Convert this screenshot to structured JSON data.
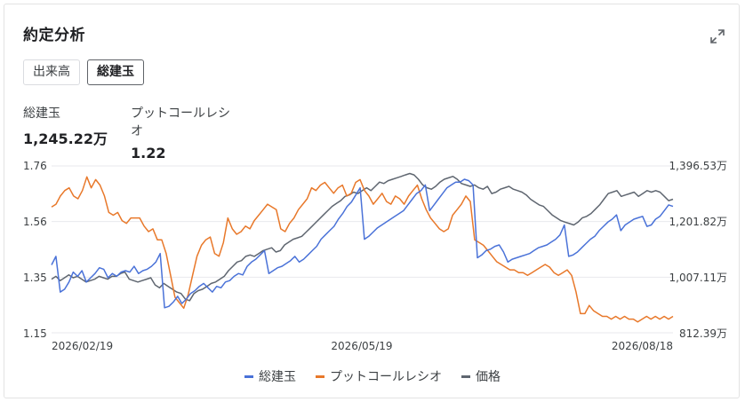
{
  "card": {
    "title": "約定分析"
  },
  "tabs": [
    {
      "label": "出来高",
      "active": false
    },
    {
      "label": "総建玉",
      "active": true
    }
  ],
  "metrics": [
    {
      "label": "総建玉",
      "value": "1,245.22万"
    },
    {
      "label": "プットコールレシオ",
      "value": "1.22"
    }
  ],
  "icons": {
    "expand": "expand-icon"
  },
  "colors": {
    "oi": "#4a72d8",
    "pcr": "#e8782a",
    "price": "#5f6670",
    "grid": "#e8eaed"
  },
  "chart_data": {
    "type": "line",
    "x_labels": [
      "2026/02/19",
      "2026/05/19",
      "2026/08/18"
    ],
    "y_left": {
      "ticks": [
        "1.76",
        "1.56",
        "1.35",
        "1.15"
      ],
      "range": [
        1.15,
        1.76
      ]
    },
    "y_right": {
      "ticks": [
        "1,396.53万",
        "1,201.82万",
        "1,007.11万",
        "812.39万"
      ],
      "range": [
        812.39,
        1396.53
      ]
    },
    "grid": true,
    "legend_position": "bottom",
    "series": [
      {
        "name": "総建玉",
        "axis": "right",
        "color": "#4a72d8",
        "values": [
          1050,
          1080,
          955,
          965,
          990,
          1025,
          1010,
          1030,
          990,
          1005,
          1020,
          1040,
          1035,
          1005,
          1020,
          1010,
          1025,
          1030,
          1025,
          1045,
          1020,
          1030,
          1035,
          1045,
          1060,
          1090,
          900,
          905,
          920,
          940,
          915,
          930,
          950,
          960,
          975,
          985,
          970,
          955,
          975,
          970,
          990,
          995,
          1010,
          1020,
          1015,
          1045,
          1060,
          1070,
          1085,
          1100,
          1020,
          1030,
          1040,
          1045,
          1055,
          1065,
          1080,
          1060,
          1070,
          1085,
          1100,
          1115,
          1140,
          1155,
          1170,
          1185,
          1210,
          1230,
          1255,
          1270,
          1295,
          1320,
          1140,
          1150,
          1165,
          1180,
          1190,
          1200,
          1210,
          1220,
          1230,
          1240,
          1260,
          1280,
          1300,
          1310,
          1330,
          1240,
          1260,
          1280,
          1300,
          1320,
          1330,
          1340,
          1340,
          1350,
          1345,
          1330,
          1075,
          1085,
          1100,
          1105,
          1115,
          1120,
          1095,
          1060,
          1070,
          1075,
          1080,
          1085,
          1090,
          1100,
          1110,
          1115,
          1120,
          1130,
          1140,
          1155,
          1190,
          1080,
          1085,
          1095,
          1110,
          1125,
          1140,
          1150,
          1170,
          1185,
          1200,
          1210,
          1225,
          1170,
          1190,
          1200,
          1210,
          1215,
          1220,
          1185,
          1190,
          1210,
          1220,
          1240,
          1260,
          1255
        ]
      },
      {
        "name": "プットコールレシオ",
        "axis": "left",
        "color": "#e8782a",
        "values": [
          1.61,
          1.62,
          1.65,
          1.67,
          1.68,
          1.65,
          1.64,
          1.67,
          1.72,
          1.68,
          1.71,
          1.69,
          1.65,
          1.59,
          1.58,
          1.59,
          1.56,
          1.55,
          1.57,
          1.57,
          1.57,
          1.54,
          1.52,
          1.53,
          1.49,
          1.49,
          1.44,
          1.36,
          1.28,
          1.26,
          1.24,
          1.29,
          1.36,
          1.43,
          1.47,
          1.49,
          1.5,
          1.44,
          1.43,
          1.48,
          1.57,
          1.53,
          1.51,
          1.52,
          1.54,
          1.53,
          1.56,
          1.58,
          1.6,
          1.62,
          1.61,
          1.6,
          1.53,
          1.52,
          1.55,
          1.57,
          1.6,
          1.62,
          1.64,
          1.68,
          1.67,
          1.69,
          1.7,
          1.68,
          1.66,
          1.68,
          1.69,
          1.65,
          1.66,
          1.7,
          1.71,
          1.67,
          1.65,
          1.62,
          1.64,
          1.66,
          1.63,
          1.62,
          1.65,
          1.64,
          1.62,
          1.65,
          1.67,
          1.69,
          1.64,
          1.6,
          1.57,
          1.55,
          1.53,
          1.52,
          1.53,
          1.58,
          1.6,
          1.62,
          1.65,
          1.63,
          1.49,
          1.48,
          1.47,
          1.45,
          1.43,
          1.41,
          1.4,
          1.39,
          1.38,
          1.38,
          1.37,
          1.37,
          1.36,
          1.37,
          1.38,
          1.39,
          1.4,
          1.39,
          1.37,
          1.36,
          1.37,
          1.38,
          1.36,
          1.3,
          1.22,
          1.22,
          1.25,
          1.23,
          1.22,
          1.21,
          1.21,
          1.2,
          1.21,
          1.2,
          1.21,
          1.2,
          1.2,
          1.19,
          1.2,
          1.21,
          1.2,
          1.21,
          1.2,
          1.21,
          1.2,
          1.21
        ]
      },
      {
        "name": "価格",
        "axis": "right",
        "color": "#5f6670",
        "values": [
          1000,
          1010,
          995,
          1005,
          1015,
          1005,
          1010,
          1000,
          990,
          995,
          1000,
          1010,
          1005,
          1000,
          1010,
          1010,
          1020,
          1025,
          1000,
          995,
          990,
          995,
          1000,
          1005,
          980,
          970,
          985,
          975,
          965,
          955,
          950,
          930,
          925,
          950,
          960,
          965,
          975,
          985,
          990,
          1000,
          1010,
          1030,
          1045,
          1060,
          1065,
          1080,
          1085,
          1080,
          1090,
          1100,
          1105,
          1110,
          1095,
          1100,
          1120,
          1130,
          1140,
          1145,
          1150,
          1165,
          1180,
          1195,
          1210,
          1225,
          1240,
          1255,
          1265,
          1275,
          1290,
          1295,
          1305,
          1300,
          1310,
          1320,
          1310,
          1325,
          1340,
          1335,
          1345,
          1350,
          1355,
          1360,
          1365,
          1370,
          1365,
          1350,
          1330,
          1320,
          1315,
          1325,
          1340,
          1350,
          1355,
          1360,
          1350,
          1335,
          1330,
          1325,
          1330,
          1320,
          1315,
          1325,
          1300,
          1305,
          1315,
          1320,
          1325,
          1315,
          1310,
          1305,
          1295,
          1280,
          1270,
          1260,
          1255,
          1240,
          1225,
          1215,
          1205,
          1200,
          1195,
          1190,
          1200,
          1215,
          1220,
          1230,
          1245,
          1260,
          1280,
          1300,
          1305,
          1310,
          1290,
          1295,
          1300,
          1305,
          1290,
          1300,
          1310,
          1305,
          1310,
          1305,
          1290,
          1275,
          1280
        ]
      }
    ]
  }
}
